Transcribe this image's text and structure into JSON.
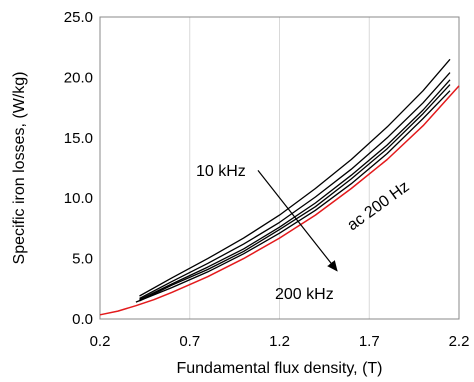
{
  "chart_data": {
    "type": "line",
    "title": "",
    "xlabel": "Fundamental flux density, (T)",
    "ylabel": "Specific iron losses, (W/kg)",
    "xlim": [
      0.2,
      2.2
    ],
    "ylim": [
      0.0,
      25.0
    ],
    "x_ticks": [
      "0.2",
      "0.7",
      "1.2",
      "1.7",
      "2.2"
    ],
    "y_ticks": [
      "0.0",
      "5.0",
      "10.0",
      "15.0",
      "20.0",
      "25.0"
    ],
    "grid": "vertical",
    "series": [
      {
        "color": "#e31a1c",
        "x": [
          0.2,
          0.3,
          0.4,
          0.5,
          0.6,
          0.7,
          0.8,
          1.0,
          1.2,
          1.4,
          1.6,
          1.8,
          2.0,
          2.2
        ],
        "y": [
          0.35,
          0.65,
          1.1,
          1.6,
          2.2,
          2.85,
          3.5,
          5.0,
          6.7,
          8.6,
          10.8,
          13.2,
          16.0,
          19.3
        ]
      },
      {
        "color": "#000000",
        "x": [
          0.4,
          0.6,
          0.8,
          1.0,
          1.2,
          1.4,
          1.6,
          1.8,
          2.0,
          2.15
        ],
        "y": [
          1.4,
          2.6,
          3.9,
          5.4,
          7.1,
          9.0,
          11.2,
          13.7,
          16.6,
          18.9
        ]
      },
      {
        "color": "#000000",
        "x": [
          0.42,
          0.6,
          0.8,
          1.0,
          1.2,
          1.4,
          1.6,
          1.8,
          2.0,
          2.15
        ],
        "y": [
          1.5,
          2.8,
          4.1,
          5.6,
          7.4,
          9.3,
          11.6,
          14.1,
          17.0,
          19.4
        ]
      },
      {
        "color": "#000000",
        "x": [
          0.42,
          0.6,
          0.8,
          1.0,
          1.2,
          1.4,
          1.6,
          1.8,
          2.0,
          2.15
        ],
        "y": [
          1.6,
          2.9,
          4.3,
          5.8,
          7.6,
          9.6,
          11.9,
          14.4,
          17.3,
          19.8
        ]
      },
      {
        "color": "#000000",
        "x": [
          0.42,
          0.6,
          0.8,
          1.0,
          1.2,
          1.4,
          1.6,
          1.8,
          2.0,
          2.15
        ],
        "y": [
          1.7,
          3.1,
          4.6,
          6.2,
          8.0,
          10.1,
          12.4,
          15.0,
          17.9,
          20.4
        ]
      },
      {
        "color": "#000000",
        "x": [
          0.42,
          0.6,
          0.8,
          1.0,
          1.2,
          1.4,
          1.6,
          1.8,
          2.0,
          2.15
        ],
        "y": [
          1.9,
          3.4,
          5.0,
          6.7,
          8.6,
          10.8,
          13.2,
          15.9,
          18.9,
          21.5
        ]
      }
    ],
    "annotations": [
      {
        "text": "10 kHz",
        "color": "#000000"
      },
      {
        "text": "200 kHz",
        "color": "#000000"
      },
      {
        "text": "ac 200 Hz",
        "color": "#e31a1c"
      }
    ],
    "arrow": {
      "from": [
        1.08,
        12.3
      ],
      "to": [
        1.52,
        4.0
      ]
    }
  }
}
